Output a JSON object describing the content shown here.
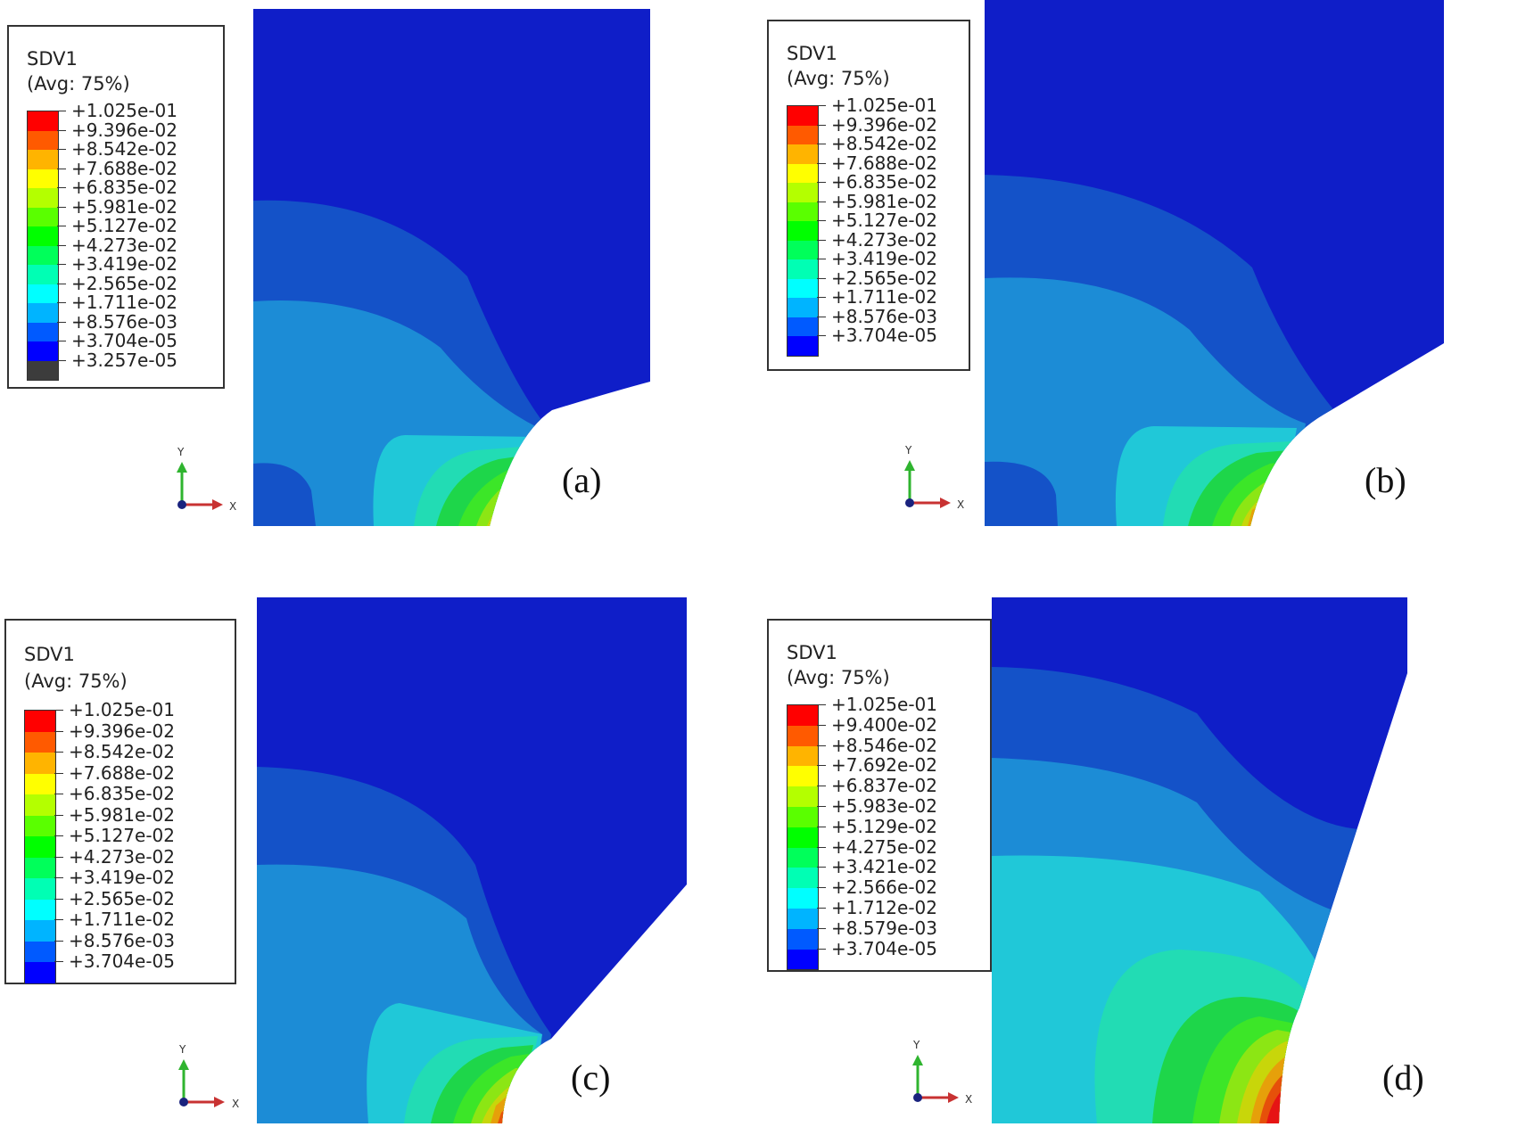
{
  "panels": [
    {
      "id": "a",
      "caption": "(a)",
      "legend_title": "SDV1",
      "legend_subtitle": "(Avg: 75%)",
      "legend_values": [
        "+1.025e-01",
        "+9.396e-02",
        "+8.542e-02",
        "+7.688e-02",
        "+6.835e-02",
        "+5.981e-02",
        "+5.127e-02",
        "+4.273e-02",
        "+3.419e-02",
        "+2.565e-02",
        "+1.711e-02",
        "+8.576e-03",
        "+3.704e-05",
        "+3.257e-05"
      ],
      "extra_gray_band": true
    },
    {
      "id": "b",
      "caption": "(b)",
      "legend_title": "SDV1",
      "legend_subtitle": "(Avg: 75%)",
      "legend_values": [
        "+1.025e-01",
        "+9.396e-02",
        "+8.542e-02",
        "+7.688e-02",
        "+6.835e-02",
        "+5.981e-02",
        "+5.127e-02",
        "+4.273e-02",
        "+3.419e-02",
        "+2.565e-02",
        "+1.711e-02",
        "+8.576e-03",
        "+3.704e-05"
      ],
      "extra_gray_band": false
    },
    {
      "id": "c",
      "caption": "(c)",
      "legend_title": "SDV1",
      "legend_subtitle": "(Avg: 75%)",
      "legend_values": [
        "+1.025e-01",
        "+9.396e-02",
        "+8.542e-02",
        "+7.688e-02",
        "+6.835e-02",
        "+5.981e-02",
        "+5.127e-02",
        "+4.273e-02",
        "+3.419e-02",
        "+2.565e-02",
        "+1.711e-02",
        "+8.576e-03",
        "+3.704e-05"
      ],
      "extra_gray_band": false
    },
    {
      "id": "d",
      "caption": "(d)",
      "legend_title": "SDV1",
      "legend_subtitle": "(Avg: 75%)",
      "legend_values": [
        "+1.025e-01",
        "+9.400e-02",
        "+8.546e-02",
        "+7.692e-02",
        "+6.837e-02",
        "+5.983e-02",
        "+5.129e-02",
        "+4.275e-02",
        "+3.421e-02",
        "+2.566e-02",
        "+1.712e-02",
        "+8.579e-03",
        "+3.704e-05"
      ],
      "extra_gray_band": false
    }
  ],
  "axis_labels": {
    "x": "X",
    "y": "Y"
  },
  "colors": {
    "bands": [
      "#ff0000",
      "#ff5a00",
      "#ffb400",
      "#ffff00",
      "#b4ff00",
      "#5aff00",
      "#00ff00",
      "#00ff5a",
      "#00ffb4",
      "#00ffff",
      "#00b4ff",
      "#005aff",
      "#0000ff"
    ],
    "plot_bands": [
      "#0f1ec8",
      "#1452c8",
      "#1c8cd6",
      "#20c8d8",
      "#22dcb4",
      "#1ed64a",
      "#3ce628",
      "#8ce614",
      "#c8d60a",
      "#e6a00a",
      "#e6500a",
      "#e61414"
    ],
    "gray": "#3c3c3c"
  }
}
